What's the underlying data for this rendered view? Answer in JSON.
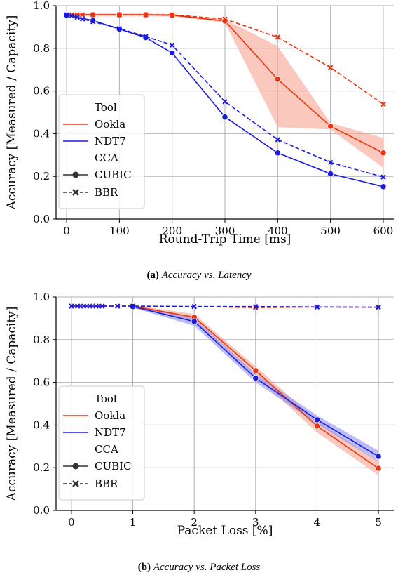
{
  "colors": {
    "ookla": "#e8340f",
    "ndt7": "#1b1be0",
    "ookla_band": "#f6a48f",
    "ndt7_band": "#8f8ff0"
  },
  "chart_data": [
    {
      "type": "line",
      "caption_label": "(a)",
      "caption_text": "Accuracy vs. Latency",
      "xlabel": "Round-Trip Time [ms]",
      "ylabel": "Accuracy [Measured / Capacity]",
      "xlim": [
        -20,
        620
      ],
      "ylim": [
        0,
        1.0
      ],
      "xticks": [
        0,
        100,
        200,
        300,
        400,
        500,
        600
      ],
      "yticks": [
        0.0,
        0.2,
        0.4,
        0.6,
        0.8,
        1.0
      ],
      "grid": true,
      "legend": {
        "placement": "lower-left",
        "tool_title": "Tool",
        "tool_entries": [
          "Ookla",
          "NDT7"
        ],
        "cca_title": "CCA",
        "cca_entries": [
          "CUBIC",
          "BBR"
        ]
      },
      "series": [
        {
          "tool": "Ookla",
          "cca": "CUBIC",
          "x": [
            0,
            50,
            100,
            150,
            200,
            300,
            400,
            500,
            600
          ],
          "y": [
            0.957,
            0.957,
            0.957,
            0.957,
            0.955,
            0.928,
            0.655,
            0.435,
            0.31
          ],
          "band_low": [
            0.95,
            0.95,
            0.95,
            0.95,
            0.95,
            0.92,
            0.43,
            0.42,
            0.24
          ],
          "band_high": [
            0.962,
            0.962,
            0.962,
            0.962,
            0.96,
            0.935,
            0.81,
            0.45,
            0.38
          ]
        },
        {
          "tool": "Ookla",
          "cca": "BBR",
          "x": [
            0,
            10,
            20,
            30,
            50,
            100,
            150,
            200,
            300,
            400,
            500,
            600
          ],
          "y": [
            0.957,
            0.957,
            0.957,
            0.957,
            0.957,
            0.957,
            0.957,
            0.957,
            0.937,
            0.852,
            0.71,
            0.538
          ]
        },
        {
          "tool": "NDT7",
          "cca": "CUBIC",
          "x": [
            0,
            50,
            100,
            150,
            200,
            300,
            400,
            500,
            600
          ],
          "y": [
            0.955,
            0.93,
            0.89,
            0.85,
            0.778,
            0.478,
            0.31,
            0.212,
            0.152
          ]
        },
        {
          "tool": "NDT7",
          "cca": "BBR",
          "x": [
            0,
            10,
            20,
            30,
            50,
            100,
            150,
            200,
            300,
            400,
            500,
            600
          ],
          "y": [
            0.957,
            0.952,
            0.945,
            0.937,
            0.925,
            0.893,
            0.855,
            0.815,
            0.55,
            0.372,
            0.265,
            0.197
          ]
        }
      ]
    },
    {
      "type": "line",
      "caption_label": "(b)",
      "caption_text": "Accuracy vs. Packet Loss",
      "xlabel": "Packet Loss [%]",
      "ylabel": "Accuracy [Measured / Capacity]",
      "xlim": [
        -0.25,
        5.25
      ],
      "ylim": [
        0,
        1.0
      ],
      "xticks": [
        0,
        1,
        2,
        3,
        4,
        5
      ],
      "yticks": [
        0.0,
        0.2,
        0.4,
        0.6,
        0.8,
        1.0
      ],
      "grid": true,
      "legend": {
        "placement": "lower-left",
        "tool_title": "Tool",
        "tool_entries": [
          "Ookla",
          "NDT7"
        ],
        "cca_title": "CCA",
        "cca_entries": [
          "CUBIC",
          "BBR"
        ]
      },
      "series": [
        {
          "tool": "Ookla",
          "cca": "CUBIC",
          "x": [
            1,
            2,
            3,
            4,
            5
          ],
          "y": [
            0.957,
            0.905,
            0.655,
            0.395,
            0.197
          ],
          "band_low": [
            0.95,
            0.89,
            0.63,
            0.365,
            0.165
          ],
          "band_high": [
            0.962,
            0.92,
            0.675,
            0.42,
            0.228
          ]
        },
        {
          "tool": "Ookla",
          "cca": "BBR",
          "x": [
            0,
            0.1,
            0.2,
            0.3,
            0.4,
            0.5,
            0.75,
            1,
            2,
            3,
            4,
            5
          ],
          "y": [
            0.957,
            0.957,
            0.957,
            0.957,
            0.957,
            0.957,
            0.957,
            0.957,
            0.955,
            0.95,
            0.953,
            0.952
          ]
        },
        {
          "tool": "NDT7",
          "cca": "CUBIC",
          "x": [
            1,
            2,
            3,
            4,
            5
          ],
          "y": [
            0.955,
            0.885,
            0.62,
            0.425,
            0.253
          ],
          "band_low": [
            0.95,
            0.865,
            0.6,
            0.405,
            0.228
          ],
          "band_high": [
            0.96,
            0.9,
            0.64,
            0.445,
            0.28
          ]
        },
        {
          "tool": "NDT7",
          "cca": "BBR",
          "x": [
            0,
            0.1,
            0.2,
            0.3,
            0.4,
            0.5,
            0.75,
            1,
            2,
            3,
            4,
            5
          ],
          "y": [
            0.957,
            0.957,
            0.957,
            0.957,
            0.957,
            0.957,
            0.957,
            0.957,
            0.955,
            0.955,
            0.953,
            0.952
          ]
        }
      ]
    }
  ]
}
